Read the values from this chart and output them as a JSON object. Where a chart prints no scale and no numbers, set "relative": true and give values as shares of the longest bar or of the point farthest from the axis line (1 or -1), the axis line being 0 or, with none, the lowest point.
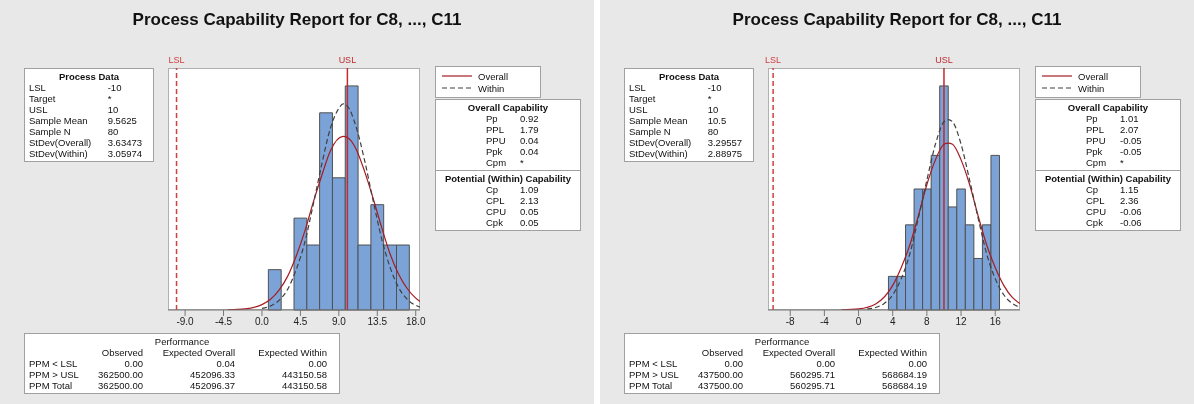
{
  "chart_data": [
    {
      "type": "histogram",
      "title": "Process Capability Report for C8, ..., C11",
      "relative": true,
      "bins": [
        0.75,
        2.25,
        3.75,
        5.25,
        6.75,
        8.25,
        9.75,
        11.25,
        12.75,
        14.25,
        15.75,
        17.25
      ],
      "values": [
        0.18,
        0,
        0.41,
        0.29,
        0.88,
        0.59,
        1,
        0.29,
        0.47,
        0.29,
        0.29
      ],
      "color": "#7ba3d8",
      "series": [
        {
          "name": "Overall",
          "type": "line",
          "color": "#a61c22",
          "line_style": "solid",
          "x": [
            -4,
            -2,
            0,
            1,
            2,
            3,
            4,
            5,
            6,
            7,
            8,
            9.5,
            10,
            11,
            12,
            13,
            14,
            15,
            16,
            17,
            18,
            18.5
          ],
          "values": [
            0.001,
            0.005,
            0.024,
            0.048,
            0.089,
            0.15,
            0.24,
            0.35,
            0.48,
            0.6,
            0.71,
            0.775,
            0.77,
            0.72,
            0.62,
            0.5,
            0.37,
            0.25,
            0.16,
            0.096,
            0.053,
            0.038
          ]
        },
        {
          "name": "Within",
          "type": "line",
          "color": "#404040",
          "line_style": "dashed",
          "x": [
            0,
            1,
            2,
            3,
            4,
            5,
            6,
            7,
            8,
            9,
            9.5,
            10,
            11,
            12,
            13,
            14,
            15,
            16,
            17,
            18,
            18.5
          ],
          "values": [
            0.007,
            0.018,
            0.043,
            0.092,
            0.18,
            0.3,
            0.47,
            0.65,
            0.81,
            0.9,
            0.92,
            0.91,
            0.82,
            0.67,
            0.49,
            0.32,
            0.19,
            0.1,
            0.048,
            0.021,
            0.013
          ]
        }
      ],
      "xlim": [
        -11,
        18.5
      ],
      "xticks": [
        {
          "value": -9,
          "label": "-9.0"
        },
        {
          "value": -4.5,
          "label": "-4.5"
        },
        {
          "value": 0,
          "label": "0.0"
        },
        {
          "value": 4.5,
          "label": "4.5"
        },
        {
          "value": 9,
          "label": "9.0"
        },
        {
          "value": 13.5,
          "label": "13.5"
        },
        {
          "value": 18,
          "label": "18.0"
        }
      ],
      "ref_lines": [
        {
          "axis": "x",
          "value": -10,
          "label": "LSL",
          "color": "#d0403f",
          "line_style": "dashed"
        },
        {
          "axis": "x",
          "value": 10,
          "label": "USL",
          "color": "#c02a2f",
          "line_style": "solid"
        }
      ],
      "legend": "right",
      "marker": "none",
      "annotations": [
        "Process Data",
        "LSL\t-10",
        "Target\t*",
        "USL\t10",
        "Sample Mean\t9.5625",
        "Sample N\t80",
        "StDev(Overall)\t3.63473",
        "StDev(Within)\t3.05974",
        "Overall Capability",
        "Pp\t0.92",
        "PPL\t1.79",
        "PPU\t0.04",
        "Ppk\t0.04",
        "Cpm\t*",
        "Potential (Within) Capability",
        "Cp\t1.09",
        "CPL\t2.13",
        "CPU\t0.05",
        "Cpk\t0.05",
        "Performance",
        "\tObserved\tExpected Overall\tExpected Within",
        "PPM < LSL\t0.00\t0.04\t0.00",
        "PPM > USL\t362500.00\t452096.33\t443150.58",
        "PPM Total\t362500.00\t452096.37\t443150.58"
      ]
    },
    {
      "type": "histogram",
      "title": "Process Capability Report for C8, ..., C11",
      "relative": true,
      "bins": [
        3.5,
        4.5,
        5.5,
        6.5,
        7.5,
        8.5,
        9.5,
        10.5,
        11.5,
        12.5,
        13.5,
        14.5,
        15.5,
        16.5
      ],
      "values": [
        0.15,
        0.15,
        0.38,
        0.54,
        0.54,
        0.69,
        1,
        0.46,
        0.54,
        0.38,
        0.23,
        0.38,
        0.69
      ],
      "color": "#7ba3d8",
      "series": [
        {
          "name": "Overall",
          "type": "line",
          "color": "#a61c22",
          "line_style": "solid",
          "x": [
            -2,
            0,
            2,
            4,
            5,
            6,
            7,
            8,
            9,
            10,
            10.5,
            11,
            12,
            13,
            14,
            15,
            16,
            17,
            18,
            18.9
          ],
          "values": [
            0.001,
            0.005,
            0.027,
            0.11,
            0.19,
            0.29,
            0.42,
            0.56,
            0.67,
            0.74,
            0.745,
            0.74,
            0.67,
            0.56,
            0.42,
            0.29,
            0.19,
            0.11,
            0.056,
            0.029
          ]
        },
        {
          "name": "Within",
          "type": "line",
          "color": "#404040",
          "line_style": "dashed",
          "x": [
            1,
            2,
            3,
            4,
            5,
            6,
            7,
            8,
            9,
            10,
            10.5,
            11,
            12,
            13,
            14,
            15,
            16,
            17,
            18,
            18.9
          ],
          "values": [
            0.004,
            0.011,
            0.029,
            0.068,
            0.14,
            0.25,
            0.41,
            0.58,
            0.74,
            0.84,
            0.85,
            0.84,
            0.74,
            0.58,
            0.41,
            0.25,
            0.14,
            0.068,
            0.029,
            0.012
          ]
        }
      ],
      "xlim": [
        -10.6,
        18.9
      ],
      "xticks": [
        -8,
        -4,
        0,
        4,
        8,
        12,
        16
      ],
      "ref_lines": [
        {
          "axis": "x",
          "value": -10,
          "label": "LSL",
          "color": "#d0403f",
          "line_style": "dashed"
        },
        {
          "axis": "x",
          "value": 10,
          "label": "USL",
          "color": "#c02a2f",
          "line_style": "solid"
        }
      ],
      "legend": "right",
      "marker": "none",
      "annotations": [
        "Process Data",
        "LSL\t-10",
        "Target\t*",
        "USL\t10",
        "Sample Mean\t10.5",
        "Sample N\t80",
        "StDev(Overall)\t3.29557",
        "StDev(Within)\t2.88975",
        "Overall Capability",
        "Pp\t1.01",
        "PPL\t2.07",
        "PPU\t-0.05",
        "Ppk\t-0.05",
        "Cpm\t*",
        "Potential (Within) Capability",
        "Cp\t1.15",
        "CPL\t2.36",
        "CPU\t-0.06",
        "Cpk\t-0.06",
        "Performance",
        "\tObserved\tExpected Overall\tExpected Within",
        "PPM < LSL\t0.00\t0.00\t0.00",
        "PPM > USL\t437500.00\t560295.71\t568684.19",
        "PPM Total\t437500.00\t560295.71\t568684.19"
      ]
    }
  ]
}
